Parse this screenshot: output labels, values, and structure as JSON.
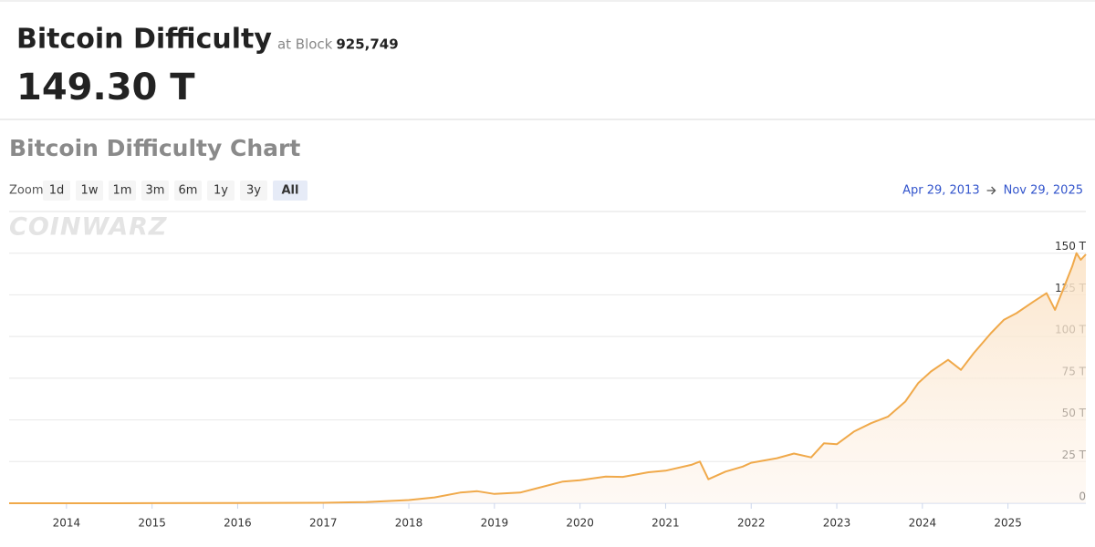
{
  "header": {
    "title": "Bitcoin Difficulty",
    "block_prefix": "at Block",
    "block": "925,749",
    "value": "149.30 T"
  },
  "chart_data": {
    "type": "line",
    "title": "Bitcoin Difficulty Chart",
    "watermark": "COINWARZ",
    "zoom_label": "Zoom",
    "zoom_buttons": [
      "1d",
      "1w",
      "1m",
      "3m",
      "6m",
      "1y",
      "3y",
      "All"
    ],
    "selected_zoom": "All",
    "date_from": "Apr 29, 2013",
    "date_to": "Nov 29, 2025",
    "xlim": [
      2013.33,
      2025.91
    ],
    "xticks": [
      2014,
      2015,
      2016,
      2017,
      2018,
      2019,
      2020,
      2021,
      2022,
      2023,
      2024,
      2025
    ],
    "ylim": [
      0,
      175
    ],
    "yticks": [
      0,
      {
        "value": 25,
        "label": "25 T"
      },
      {
        "value": 50,
        "label": "50 T"
      },
      {
        "value": 75,
        "label": "75 T"
      },
      {
        "value": 100,
        "label": "100 T"
      },
      {
        "value": 125,
        "label": "125 T"
      },
      {
        "value": 150,
        "label": "150 T"
      }
    ],
    "grid": true,
    "series": [
      {
        "name": "Difficulty",
        "color": "#f0a94a",
        "x": [
          2013.33,
          2014.0,
          2015.0,
          2016.0,
          2017.0,
          2017.5,
          2018.0,
          2018.3,
          2018.6,
          2018.8,
          2019.0,
          2019.3,
          2019.5,
          2019.8,
          2020.0,
          2020.3,
          2020.5,
          2020.8,
          2021.0,
          2021.3,
          2021.4,
          2021.5,
          2021.7,
          2021.9,
          2022.0,
          2022.3,
          2022.5,
          2022.7,
          2022.85,
          2023.0,
          2023.2,
          2023.4,
          2023.6,
          2023.8,
          2023.95,
          2024.1,
          2024.3,
          2024.45,
          2024.6,
          2024.8,
          2024.95,
          2025.1,
          2025.3,
          2025.45,
          2025.55,
          2025.65,
          2025.75,
          2025.8,
          2025.85,
          2025.91
        ],
        "values": [
          0.01,
          0.002,
          0.04,
          0.1,
          0.3,
          0.7,
          1.9,
          3.5,
          6.4,
          7.2,
          5.6,
          6.4,
          9.0,
          13.0,
          13.8,
          16.0,
          15.8,
          18.6,
          19.5,
          23.0,
          25.0,
          14.4,
          19.0,
          22.0,
          24.3,
          27.0,
          29.8,
          27.5,
          36.0,
          35.4,
          43.0,
          48.0,
          52.0,
          61.0,
          72.0,
          79.0,
          86.0,
          80.0,
          90.0,
          102.0,
          110.0,
          114.0,
          121.0,
          126.0,
          116.0,
          129.0,
          142.0,
          150.0,
          146.0,
          149.3
        ]
      }
    ]
  }
}
